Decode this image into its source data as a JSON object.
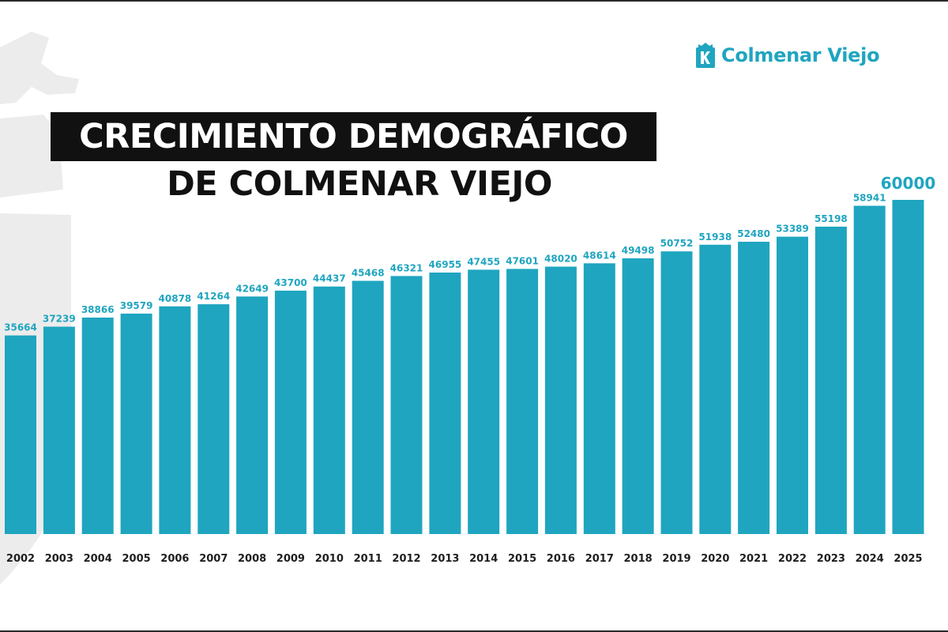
{
  "logo": {
    "text": "Colmenar Viejo",
    "icon": "colmenar-viejo-crest-icon"
  },
  "colors": {
    "bar": "#1fa5c0",
    "title_bg": "#111111",
    "title_text": "#ffffff",
    "axis_text": "#1e1e1e"
  },
  "chart_data": {
    "type": "bar",
    "title": "CRECIMIENTO DEMOGRÁFICO DE COLMENAR VIEJO",
    "title_lines": [
      "CRECIMIENTO DEMOGRÁFICO",
      "DE COLMENAR VIEJO"
    ],
    "categories": [
      "2002",
      "2003",
      "2004",
      "2005",
      "2006",
      "2007",
      "2008",
      "2009",
      "2010",
      "2011",
      "2012",
      "2013",
      "2014",
      "2015",
      "2016",
      "2017",
      "2018",
      "2019",
      "2020",
      "2021",
      "2022",
      "2023",
      "2024",
      "2025"
    ],
    "values": [
      35664,
      37239,
      38866,
      39579,
      40878,
      41264,
      42649,
      43700,
      44437,
      45468,
      46321,
      46955,
      47455,
      47601,
      48020,
      48614,
      49498,
      50752,
      51938,
      52480,
      53389,
      55198,
      58941,
      60000
    ],
    "data_labels": [
      "35664",
      "37239",
      "38866",
      "39579",
      "40878",
      "41264",
      "42649",
      "43700",
      "44437",
      "45468",
      "46321",
      "46955",
      "47455",
      "47601",
      "48020",
      "48614",
      "49498",
      "50752",
      "51938",
      "52480",
      "53389",
      "55198",
      "58941",
      "60000"
    ],
    "highlight_last": true,
    "xlabel": "",
    "ylabel": "",
    "grid": false,
    "legend": "none"
  }
}
